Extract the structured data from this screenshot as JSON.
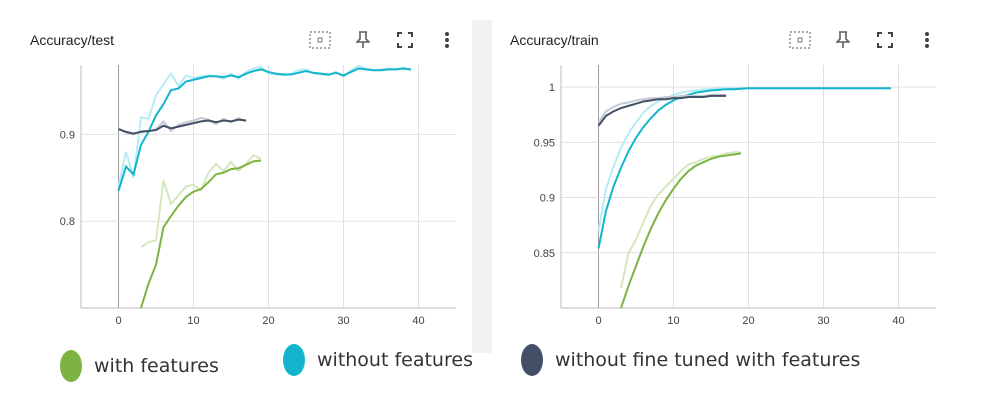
{
  "colors": {
    "with_features": "#7cb342",
    "with_features_light": "#d4e8bd",
    "without_features": "#12b5cb",
    "without_features_light": "#b5ecf4",
    "without_finetuned": "#425066",
    "without_finetuned_light": "#c5c9d3",
    "grid": "#e0e0e0",
    "zero_line": "#9e9e9e",
    "icon": "#616161"
  },
  "toolbar_icons": [
    "fit-domain-icon",
    "pin-icon",
    "fullscreen-icon",
    "more-vert-icon"
  ],
  "legend": [
    {
      "label": "with features",
      "color": "#7cb342"
    },
    {
      "label": "without features",
      "color": "#12b5cb"
    },
    {
      "label": "without fine tuned with features",
      "color": "#425066"
    }
  ],
  "chart_data": [
    {
      "type": "line",
      "title": "Accuracy/test",
      "xlim": [
        -5,
        45
      ],
      "ylim": [
        0.7,
        0.98
      ],
      "x_ticks": [
        0,
        10,
        20,
        30,
        40
      ],
      "y_ticks": [
        0.8,
        0.9
      ],
      "y_tick_labels": [
        "0.8",
        "0.9"
      ],
      "grid": true,
      "series": [
        {
          "color_key": "with_features",
          "x": [
            3,
            4,
            5,
            6,
            7,
            8,
            9,
            10,
            11,
            12,
            13,
            14,
            15,
            16,
            17,
            18,
            19
          ],
          "smoothed": [
            0.7,
            0.728,
            0.75,
            0.793,
            0.806,
            0.818,
            0.828,
            0.834,
            0.837,
            0.845,
            0.854,
            0.856,
            0.86,
            0.861,
            0.865,
            0.869,
            0.87
          ],
          "raw": [
            0.77,
            0.776,
            0.778,
            0.847,
            0.82,
            0.83,
            0.84,
            0.842,
            0.836,
            0.856,
            0.866,
            0.858,
            0.868,
            0.858,
            0.866,
            0.876,
            0.872
          ]
        },
        {
          "color_key": "without_features",
          "x": [
            0,
            1,
            2,
            3,
            4,
            5,
            6,
            7,
            8,
            9,
            10,
            11,
            12,
            13,
            14,
            15,
            16,
            17,
            18,
            19,
            20,
            21,
            22,
            23,
            24,
            25,
            26,
            27,
            28,
            29,
            30,
            31,
            32,
            33,
            34,
            35,
            36,
            37,
            38,
            39
          ],
          "smoothed": [
            0.835,
            0.863,
            0.854,
            0.888,
            0.903,
            0.922,
            0.935,
            0.951,
            0.953,
            0.961,
            0.963,
            0.965,
            0.967,
            0.967,
            0.966,
            0.968,
            0.966,
            0.97,
            0.973,
            0.975,
            0.972,
            0.97,
            0.969,
            0.969,
            0.971,
            0.973,
            0.971,
            0.97,
            0.969,
            0.971,
            0.968,
            0.972,
            0.976,
            0.975,
            0.974,
            0.974,
            0.975,
            0.975,
            0.976,
            0.975
          ],
          "raw": [
            0.84,
            0.88,
            0.85,
            0.92,
            0.918,
            0.945,
            0.958,
            0.97,
            0.956,
            0.968,
            0.965,
            0.967,
            0.968,
            0.967,
            0.964,
            0.97,
            0.964,
            0.972,
            0.976,
            0.978,
            0.97,
            0.969,
            0.968,
            0.97,
            0.974,
            0.975,
            0.97,
            0.969,
            0.968,
            0.972,
            0.966,
            0.974,
            0.979,
            0.976,
            0.974,
            0.975,
            0.976,
            0.975,
            0.977,
            0.974
          ]
        },
        {
          "color_key": "without_finetuned",
          "x": [
            0,
            1,
            2,
            3,
            4,
            5,
            6,
            7,
            8,
            9,
            10,
            11,
            12,
            13,
            14,
            15,
            16,
            17
          ],
          "smoothed": [
            0.906,
            0.903,
            0.901,
            0.903,
            0.904,
            0.905,
            0.91,
            0.907,
            0.909,
            0.911,
            0.913,
            0.915,
            0.916,
            0.914,
            0.916,
            0.915,
            0.917,
            0.916
          ],
          "raw": [
            0.907,
            0.902,
            0.9,
            0.904,
            0.904,
            0.906,
            0.915,
            0.904,
            0.911,
            0.914,
            0.916,
            0.919,
            0.917,
            0.912,
            0.918,
            0.914,
            0.919,
            0.915
          ]
        }
      ]
    },
    {
      "type": "line",
      "title": "Accuracy/train",
      "xlim": [
        -5,
        45
      ],
      "ylim": [
        0.8,
        1.02
      ],
      "x_ticks": [
        0,
        10,
        20,
        30,
        40
      ],
      "y_ticks": [
        0.85,
        0.9,
        0.95,
        1.0
      ],
      "y_tick_labels": [
        "0.85",
        "0.9",
        "0.95",
        "1"
      ],
      "grid": true,
      "series": [
        {
          "color_key": "with_features",
          "x": [
            3,
            4,
            5,
            6,
            7,
            8,
            9,
            10,
            11,
            12,
            13,
            14,
            15,
            16,
            17,
            18,
            19
          ],
          "smoothed": [
            0.8,
            0.82,
            0.838,
            0.856,
            0.872,
            0.886,
            0.898,
            0.908,
            0.917,
            0.924,
            0.929,
            0.932,
            0.935,
            0.937,
            0.938,
            0.939,
            0.94
          ],
          "raw": [
            0.818,
            0.85,
            0.862,
            0.878,
            0.893,
            0.903,
            0.91,
            0.917,
            0.924,
            0.93,
            0.932,
            0.935,
            0.937,
            0.938,
            0.94,
            0.941,
            0.941
          ]
        },
        {
          "color_key": "without_features",
          "x": [
            0,
            1,
            2,
            3,
            4,
            5,
            6,
            7,
            8,
            9,
            10,
            11,
            12,
            13,
            14,
            15,
            16,
            17,
            18,
            19,
            20,
            21,
            22,
            23,
            24,
            25,
            26,
            27,
            28,
            29,
            30,
            31,
            32,
            33,
            34,
            35,
            36,
            37,
            38,
            39
          ],
          "smoothed": [
            0.854,
            0.888,
            0.91,
            0.927,
            0.942,
            0.954,
            0.964,
            0.972,
            0.979,
            0.984,
            0.988,
            0.991,
            0.993,
            0.995,
            0.996,
            0.997,
            0.9975,
            0.998,
            0.998,
            0.9985,
            0.999,
            0.999,
            0.999,
            0.999,
            0.999,
            0.999,
            0.999,
            0.999,
            0.999,
            0.999,
            0.999,
            0.999,
            0.999,
            0.999,
            0.999,
            0.999,
            0.999,
            0.999,
            0.999,
            0.999
          ],
          "raw": [
            0.87,
            0.908,
            0.928,
            0.945,
            0.958,
            0.968,
            0.977,
            0.983,
            0.987,
            0.99,
            0.993,
            0.995,
            0.996,
            0.997,
            0.998,
            0.998,
            0.999,
            0.999,
            0.999,
            0.999,
            0.999,
            0.999,
            0.999,
            0.999,
            0.999,
            0.999,
            0.999,
            0.999,
            0.999,
            0.999,
            0.999,
            0.999,
            0.999,
            0.999,
            0.999,
            0.999,
            0.999,
            0.999,
            0.999,
            0.999
          ]
        },
        {
          "color_key": "without_finetuned",
          "x": [
            0,
            1,
            2,
            3,
            4,
            5,
            6,
            7,
            8,
            9,
            10,
            11,
            12,
            13,
            14,
            15,
            16,
            17
          ],
          "smoothed": [
            0.965,
            0.974,
            0.978,
            0.981,
            0.983,
            0.985,
            0.987,
            0.988,
            0.989,
            0.989,
            0.99,
            0.99,
            0.991,
            0.991,
            0.991,
            0.992,
            0.992,
            0.992
          ],
          "raw": [
            0.968,
            0.978,
            0.982,
            0.985,
            0.986,
            0.988,
            0.989,
            0.99,
            0.99,
            0.991,
            0.991,
            0.992,
            0.992,
            0.992,
            0.992,
            0.993,
            0.993,
            0.993
          ]
        }
      ]
    }
  ]
}
